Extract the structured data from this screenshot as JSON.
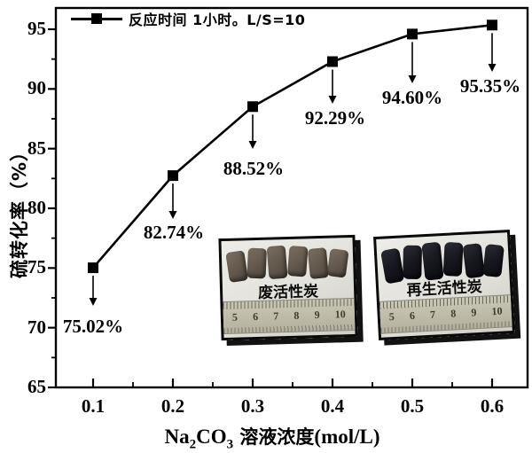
{
  "chart_data": {
    "type": "line",
    "x": [
      0.1,
      0.2,
      0.3,
      0.4,
      0.5,
      0.6
    ],
    "y": [
      75.02,
      82.74,
      88.52,
      92.29,
      94.6,
      95.35
    ],
    "point_labels": [
      "75.02%",
      "82.74%",
      "88.52%",
      "92.29%",
      "94.60%",
      "95.35%"
    ],
    "series": [
      {
        "name": "反应时间 1小时。L/S=10",
        "marker": "filled-square",
        "color": "#000000"
      }
    ],
    "xticks": [
      "0.1",
      "0.2",
      "0.3",
      "0.4",
      "0.5",
      "0.6"
    ],
    "yticks": [
      "65",
      "70",
      "75",
      "80",
      "85",
      "90",
      "95"
    ],
    "xlim": [
      0.052,
      0.646
    ],
    "ylim": [
      65,
      96.85
    ],
    "grid": false,
    "legend_position": "top-left",
    "ylabel": "硫转化率（%）",
    "xlabel": {
      "formula_main": "Na",
      "formula_sub1": "2",
      "formula_mid": "CO",
      "formula_sub2": "3",
      "suffix_cjk": " 溶液浓度",
      "suffix_unit": "(mol/L)"
    }
  },
  "insets": [
    {
      "label": "废活性炭",
      "pellet_count": 6,
      "pellet_color": "#675c50",
      "ruler_numbers": [
        "5",
        "6",
        "7",
        "8",
        "9",
        "10"
      ]
    },
    {
      "label": "再生活性炭",
      "pellet_count": 6,
      "pellet_color": "#15151d",
      "ruler_numbers": [
        "5",
        "6",
        "7",
        "8",
        "9",
        "10"
      ]
    }
  ],
  "colors": {
    "line": "#000000",
    "frame": "#000000",
    "background": "#ffffff"
  }
}
